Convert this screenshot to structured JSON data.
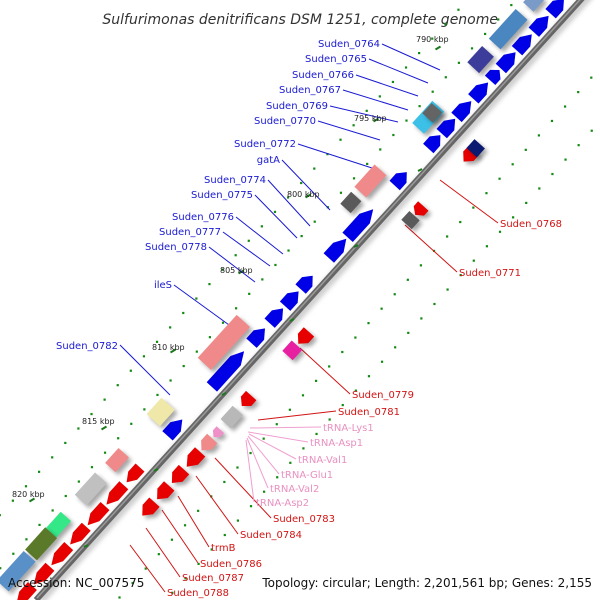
{
  "title": "Sulfurimonas denitrificans DSM 1251, complete genome",
  "footer": {
    "accession": "Accession: NC_007575",
    "summary": "Topology: circular; Length: 2,201,561 bp; Genes: 2,155"
  },
  "colors": {
    "plus_strand_genes": "#0000e6",
    "minus_strand_genes": "#e60000",
    "trna": "#f08cc8",
    "backbone": "#666666",
    "gc_dots": "#138a13",
    "ticks": "#157a15"
  },
  "kbp_markers": [
    "790 kbp",
    "795 kbp",
    "800 kbp",
    "805 kbp",
    "810 kbp",
    "815 kbp",
    "820 kbp"
  ],
  "plus_strand_labels": [
    "Suden_0764",
    "Suden_0765",
    "Suden_0766",
    "Suden_0767",
    "Suden_0769",
    "Suden_0770",
    "Suden_0772",
    "gatA",
    "Suden_0774",
    "Suden_0775",
    "Suden_0776",
    "Suden_0777",
    "Suden_0778",
    "ileS",
    "Suden_0782"
  ],
  "minus_strand_labels": [
    "Suden_0768",
    "Suden_0771",
    "Suden_0779",
    "Suden_0781",
    "Suden_0783",
    "Suden_0784",
    "trmB",
    "Suden_0786",
    "Suden_0787",
    "Suden_0788"
  ],
  "trna_labels": [
    "tRNA-Lys1",
    "tRNA-Asp1",
    "tRNA-Val1",
    "tRNA-Glu1",
    "tRNA-Val2",
    "tRNA-Asp2"
  ]
}
